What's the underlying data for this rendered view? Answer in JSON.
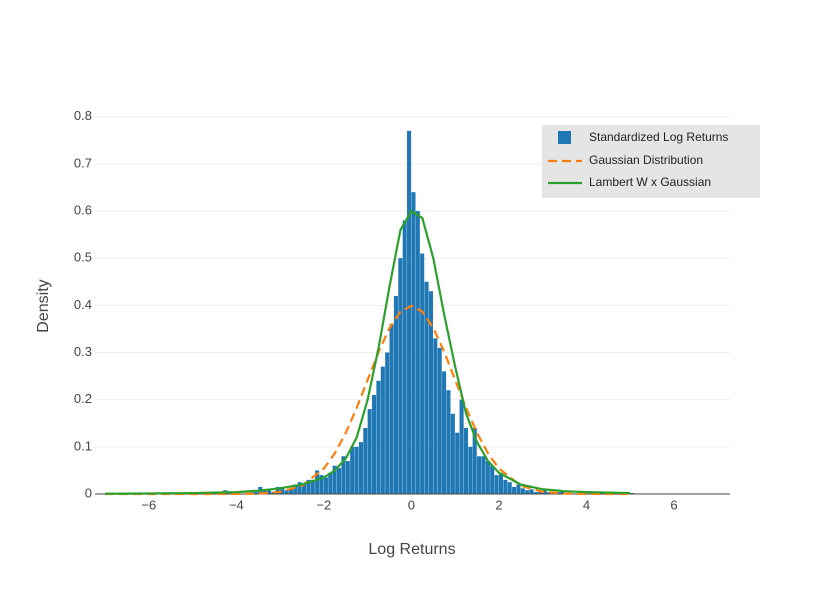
{
  "chart_data": {
    "type": "histogram",
    "xlabel": "Log Returns",
    "ylabel": "Density",
    "xlim": [
      -7.23,
      7.28
    ],
    "ylim": [
      0,
      0.81
    ],
    "xticks": [
      {
        "value": -6,
        "label": "−6"
      },
      {
        "value": -4,
        "label": "−4"
      },
      {
        "value": -2,
        "label": "−2"
      },
      0,
      2,
      4,
      6
    ],
    "yticks": [
      0,
      0.1,
      0.2,
      0.3,
      0.4,
      0.5,
      0.6,
      0.7,
      0.8
    ],
    "grid": true,
    "legend": "top-right",
    "histogram": {
      "name": "Standardized Log Returns",
      "color": "#1f77b4",
      "bins": [
        -4.4,
        -4.3,
        -4.2,
        -4.1,
        -4.0,
        -3.9,
        -3.8,
        -3.7,
        -3.6,
        -3.5,
        -3.4,
        -3.3,
        -3.2,
        -3.1,
        -3.0,
        -2.9,
        -2.8,
        -2.7,
        -2.6,
        -2.5,
        -2.4,
        -2.3,
        -2.2,
        -2.1,
        -2.0,
        -1.9,
        -1.8,
        -1.7,
        -1.6,
        -1.5,
        -1.4,
        -1.3,
        -1.2,
        -1.1,
        -1.0,
        -0.9,
        -0.8,
        -0.7,
        -0.6,
        -0.5,
        -0.4,
        -0.3,
        -0.2,
        -0.1,
        0.0,
        0.1,
        0.2,
        0.3,
        0.4,
        0.5,
        0.6,
        0.7,
        0.8,
        0.9,
        1.0,
        1.1,
        1.2,
        1.3,
        1.4,
        1.5,
        1.6,
        1.7,
        1.8,
        1.9,
        2.0,
        2.1,
        2.2,
        2.3,
        2.4,
        2.5,
        2.6,
        2.7,
        2.8,
        2.9,
        3.0,
        3.1,
        3.2,
        3.3,
        3.4,
        3.5,
        3.6,
        3.7,
        3.8,
        3.9,
        4.0,
        4.1,
        4.2,
        4.3,
        4.4,
        4.5,
        4.6,
        4.7,
        4.8,
        4.9,
        5.0,
        5.1,
        5.2
      ],
      "counts": [
        0,
        0.008,
        0,
        0,
        0,
        0,
        0,
        0.004,
        0.004,
        0.015,
        0.01,
        0.008,
        0.004,
        0.015,
        0.015,
        0.008,
        0.012,
        0.02,
        0.025,
        0.02,
        0.03,
        0.03,
        0.05,
        0.04,
        0.035,
        0.045,
        0.06,
        0.055,
        0.08,
        0.07,
        0.1,
        0.1,
        0.11,
        0.14,
        0.18,
        0.21,
        0.24,
        0.27,
        0.3,
        0.36,
        0.42,
        0.5,
        0.58,
        0.77,
        0.64,
        0.6,
        0.51,
        0.45,
        0.43,
        0.33,
        0.31,
        0.26,
        0.22,
        0.17,
        0.13,
        0.2,
        0.14,
        0.1,
        0.14,
        0.08,
        0.08,
        0.07,
        0.06,
        0.04,
        0.045,
        0.03,
        0.025,
        0.015,
        0.02,
        0.012,
        0.008,
        0.01,
        0.004,
        0.006,
        0.01,
        0.004,
        0,
        0.004,
        0.008,
        0,
        0,
        0,
        0,
        0,
        0,
        0,
        0,
        0,
        0,
        0,
        0,
        0,
        0,
        0,
        0.002,
        0
      ]
    },
    "x": [
      -7,
      -6,
      -5,
      -4,
      -3.5,
      -3,
      -2.5,
      -2,
      -1.75,
      -1.5,
      -1.25,
      -1,
      -0.75,
      -0.5,
      -0.25,
      0,
      0.25,
      0.5,
      0.75,
      1,
      1.25,
      1.5,
      1.75,
      2,
      2.5,
      3,
      3.5,
      4,
      5
    ],
    "series": [
      {
        "name": "Gaussian Distribution",
        "color": "#ff7f0e",
        "dash": true,
        "values": [
          0,
          0,
          0,
          0.0001,
          0.0009,
          0.0044,
          0.0175,
          0.054,
          0.0863,
          0.1295,
          0.1826,
          0.242,
          0.3011,
          0.3521,
          0.3867,
          0.3989,
          0.3867,
          0.3521,
          0.3011,
          0.242,
          0.1826,
          0.1295,
          0.0863,
          0.054,
          0.0175,
          0.0044,
          0.0009,
          0.0001,
          0
        ]
      },
      {
        "name": "Lambert W x Gaussian",
        "color": "#2ca02c",
        "dash": false,
        "values": [
          0.0005,
          0.001,
          0.002,
          0.004,
          0.007,
          0.012,
          0.02,
          0.035,
          0.05,
          0.075,
          0.12,
          0.2,
          0.31,
          0.44,
          0.56,
          0.6,
          0.585,
          0.5,
          0.38,
          0.27,
          0.17,
          0.11,
          0.07,
          0.045,
          0.02,
          0.01,
          0.006,
          0.004,
          0.002
        ]
      }
    ]
  }
}
